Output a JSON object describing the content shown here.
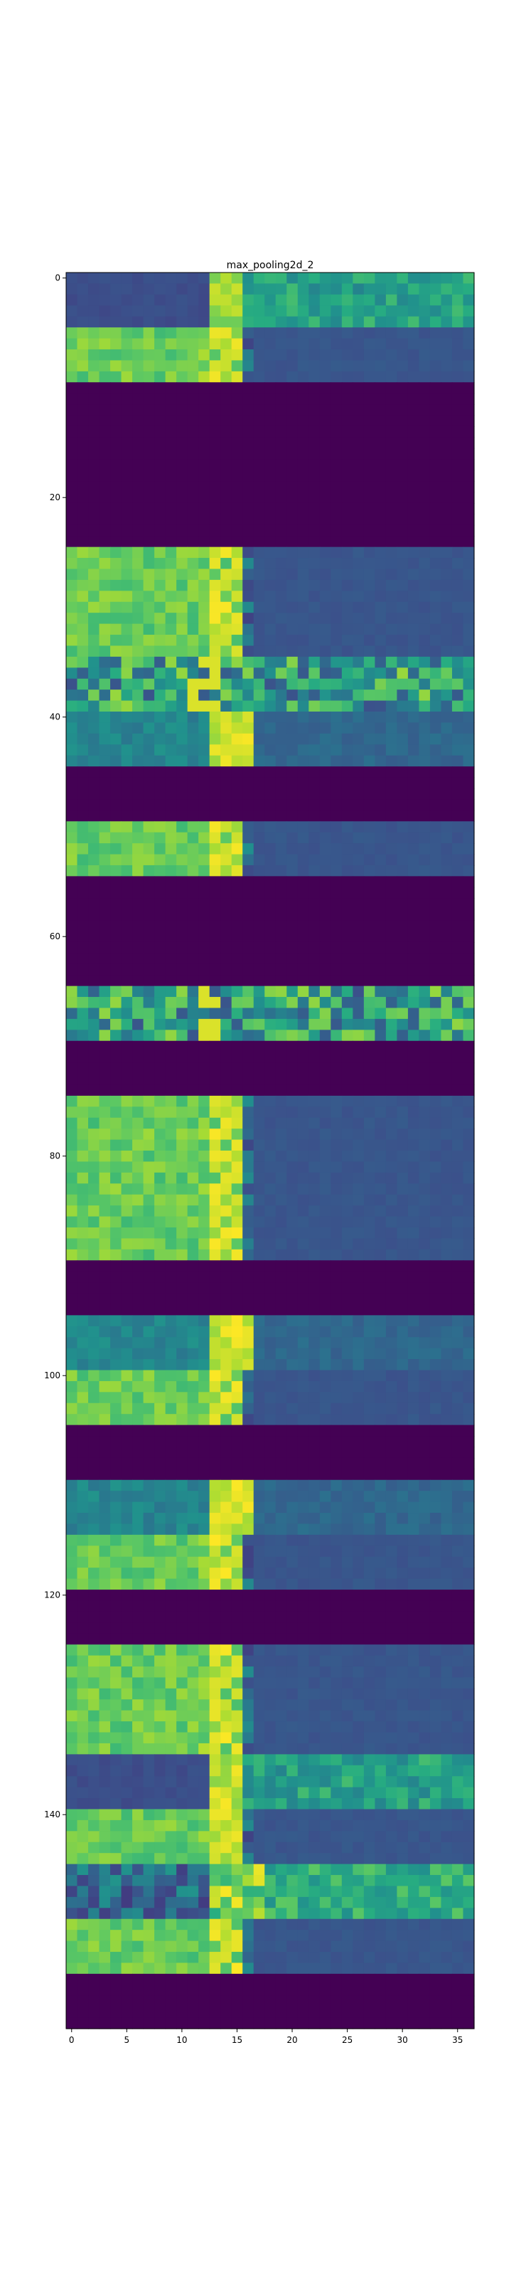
{
  "chart_data": {
    "type": "heatmap",
    "title": "max_pooling2d_2",
    "xlabel": "",
    "ylabel": "",
    "n_cols": 37,
    "n_rows": 160,
    "xlim": [
      -0.5,
      36.5
    ],
    "ylim": [
      159.5,
      -0.5
    ],
    "x_ticks": [
      0,
      5,
      10,
      15,
      20,
      25,
      30,
      35
    ],
    "y_ticks": [
      0,
      20,
      40,
      60,
      80,
      100,
      120,
      140
    ],
    "colormap": "viridis",
    "value_range": [
      0,
      1
    ],
    "grid": false,
    "bands": [
      {
        "rows": [
          0,
          4
        ],
        "pattern": "dark-left"
      },
      {
        "rows": [
          5,
          9
        ],
        "pattern": "bright-left"
      },
      {
        "rows": [
          10,
          24
        ],
        "pattern": "zero"
      },
      {
        "rows": [
          25,
          29
        ],
        "pattern": "bright-left"
      },
      {
        "rows": [
          30,
          34
        ],
        "pattern": "bright-left"
      },
      {
        "rows": [
          35,
          39
        ],
        "pattern": "noisy"
      },
      {
        "rows": [
          40,
          44
        ],
        "pattern": "teal-left"
      },
      {
        "rows": [
          45,
          49
        ],
        "pattern": "zero"
      },
      {
        "rows": [
          50,
          54
        ],
        "pattern": "bright-left"
      },
      {
        "rows": [
          55,
          64
        ],
        "pattern": "zero"
      },
      {
        "rows": [
          65,
          69
        ],
        "pattern": "noisy"
      },
      {
        "rows": [
          70,
          74
        ],
        "pattern": "zero"
      },
      {
        "rows": [
          75,
          79
        ],
        "pattern": "bright-left"
      },
      {
        "rows": [
          80,
          84
        ],
        "pattern": "bright-left"
      },
      {
        "rows": [
          85,
          89
        ],
        "pattern": "bright-left"
      },
      {
        "rows": [
          90,
          94
        ],
        "pattern": "zero"
      },
      {
        "rows": [
          95,
          99
        ],
        "pattern": "teal-left"
      },
      {
        "rows": [
          100,
          104
        ],
        "pattern": "bright-left"
      },
      {
        "rows": [
          105,
          109
        ],
        "pattern": "zero"
      },
      {
        "rows": [
          110,
          114
        ],
        "pattern": "teal-left"
      },
      {
        "rows": [
          115,
          119
        ],
        "pattern": "bright-left"
      },
      {
        "rows": [
          120,
          124
        ],
        "pattern": "zero"
      },
      {
        "rows": [
          125,
          129
        ],
        "pattern": "bright-left"
      },
      {
        "rows": [
          130,
          134
        ],
        "pattern": "bright-left"
      },
      {
        "rows": [
          135,
          139
        ],
        "pattern": "dark-left"
      },
      {
        "rows": [
          140,
          144
        ],
        "pattern": "bright-left"
      },
      {
        "rows": [
          145,
          149
        ],
        "pattern": "noisy-dark"
      },
      {
        "rows": [
          150,
          154
        ],
        "pattern": "bright-left"
      },
      {
        "rows": [
          155,
          159
        ],
        "pattern": "zero"
      }
    ]
  }
}
